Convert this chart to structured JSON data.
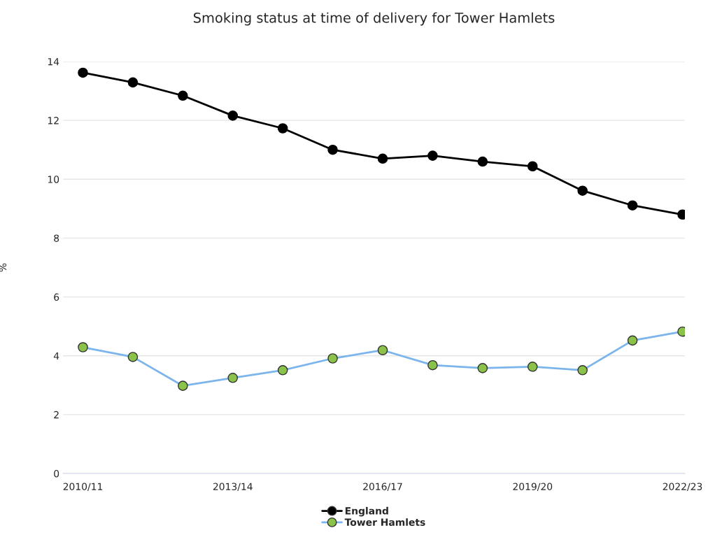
{
  "chart_data": {
    "type": "line",
    "title": "Smoking status at time of delivery for Tower Hamlets",
    "ylabel": "%",
    "categories": [
      "2010/11",
      null,
      null,
      "2013/14",
      null,
      null,
      "2016/17",
      null,
      null,
      "2019/20",
      null,
      null,
      "2022/23"
    ],
    "series": [
      {
        "name": "England",
        "color": "#000000",
        "values": [
          13.62,
          13.29,
          12.84,
          12.16,
          11.73,
          11.0,
          10.7,
          10.8,
          10.6,
          10.44,
          9.61,
          9.11,
          8.8
        ]
      },
      {
        "name": "Tower Hamlets",
        "color": "#7cb5ec",
        "colors": [
          "#8bc34a",
          "#8bc34a",
          "#8bc34a",
          "#8bc34a",
          "#8bc34a",
          "#8bc34a",
          "#8bc34a",
          "#8bc34a",
          "#8bc34a",
          "#8bc34a",
          "#8bc34a",
          "#8bc34a",
          "#8bc34a"
        ],
        "values": [
          4.29,
          3.96,
          2.98,
          3.25,
          3.51,
          3.91,
          4.19,
          3.68,
          3.58,
          3.63,
          3.51,
          4.52,
          4.82
        ]
      }
    ],
    "ylim": [
      0,
      14
    ],
    "yticks": [
      0,
      2,
      4,
      6,
      8,
      10,
      12,
      14
    ],
    "grid": "y",
    "legend": "bottom",
    "marker": "circle",
    "line_style": "solid"
  }
}
